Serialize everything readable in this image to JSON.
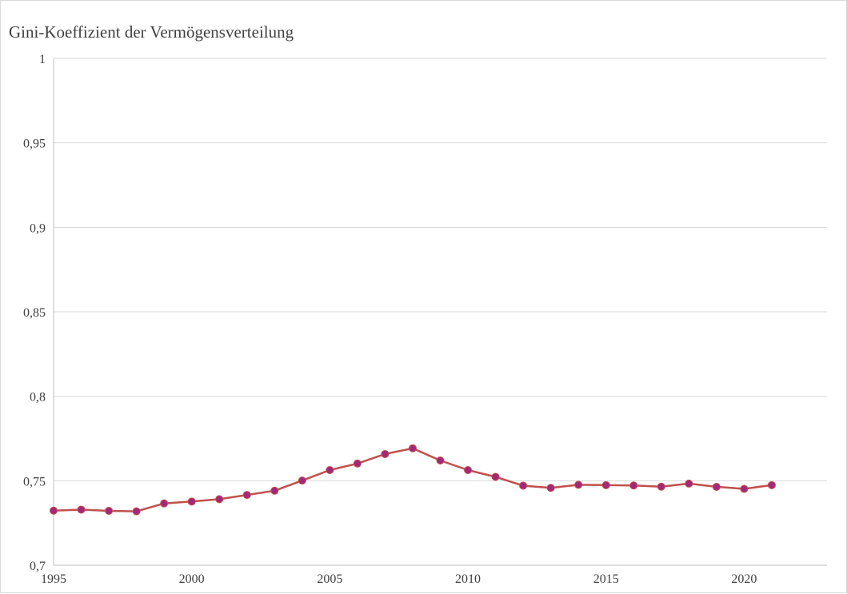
{
  "chart_data": {
    "type": "line",
    "title": "Gini-Koeffizient der Vermögensverteilung",
    "xlabel": "",
    "ylabel": "",
    "x": [
      1995,
      1996,
      1997,
      1998,
      1999,
      2000,
      2001,
      2002,
      2003,
      2004,
      2005,
      2006,
      2007,
      2008,
      2009,
      2010,
      2011,
      2012,
      2013,
      2014,
      2015,
      2016,
      2017,
      2018,
      2019,
      2020,
      2021
    ],
    "series": [
      {
        "values": [
          0.7323,
          0.7329,
          0.7322,
          0.7319,
          0.7366,
          0.7377,
          0.7391,
          0.7416,
          0.7441,
          0.7501,
          0.7563,
          0.7602,
          0.7658,
          0.7692,
          0.762,
          0.7563,
          0.7523,
          0.7471,
          0.7458,
          0.7476,
          0.7474,
          0.7472,
          0.7465,
          0.7483,
          0.7464,
          0.7452,
          0.7474
        ],
        "line_color": "#c0504d",
        "marker_color": "#a3277a"
      }
    ],
    "ylim": [
      0.7,
      1.0
    ],
    "xlim": [
      1995,
      2023
    ],
    "y_ticks": [
      {
        "value": 0.7,
        "label": "0,7"
      },
      {
        "value": 0.75,
        "label": "0,75"
      },
      {
        "value": 0.8,
        "label": "0,8"
      },
      {
        "value": 0.85,
        "label": "0,85"
      },
      {
        "value": 0.9,
        "label": "0,9"
      },
      {
        "value": 0.95,
        "label": "0,95"
      },
      {
        "value": 1.0,
        "label": "1"
      }
    ],
    "x_ticks": [
      {
        "value": 1995,
        "label": "1995"
      },
      {
        "value": 2000,
        "label": "2000"
      },
      {
        "value": 2005,
        "label": "2005"
      },
      {
        "value": 2010,
        "label": "2010"
      },
      {
        "value": 2015,
        "label": "2015"
      },
      {
        "value": 2020,
        "label": "2020"
      }
    ],
    "grid": true,
    "legend": "none",
    "gridline_color": "#d9d9d9",
    "axis_color": "#bfbfbf"
  }
}
